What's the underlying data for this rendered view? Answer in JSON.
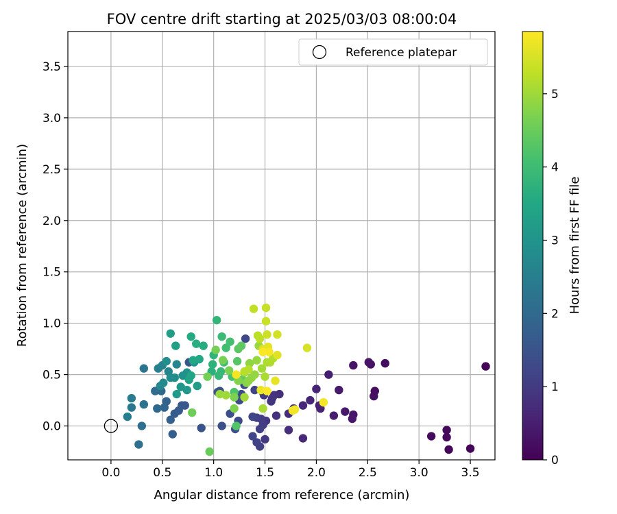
{
  "chart_data": {
    "type": "scatter",
    "title": "FOV centre drift starting at 2025/03/03 08:00:04",
    "xlabel": "Angular distance from reference (arcmin)",
    "ylabel": "Rotation from reference (arcmin)",
    "xlim": [
      -0.42,
      3.74
    ],
    "ylim": [
      -0.33,
      3.84
    ],
    "xticks": [
      "0.0",
      "0.5",
      "1.0",
      "1.5",
      "2.0",
      "2.5",
      "3.0",
      "3.5"
    ],
    "yticks": [
      "0.0",
      "0.5",
      "1.0",
      "1.5",
      "2.0",
      "2.5",
      "3.0",
      "3.5"
    ],
    "grid": true,
    "legend": {
      "placement": "top-right",
      "entries": [
        "Reference platepar"
      ]
    },
    "reference_point": {
      "x": 0.0,
      "y": 0.0
    },
    "colorbar": {
      "label": "Hours from first FF file",
      "range": [
        0,
        5.85
      ],
      "ticks": [
        "0",
        "1",
        "2",
        "3",
        "4",
        "5"
      ],
      "colormap": "viridis"
    },
    "points": [
      [
        3.65,
        0.58,
        0.05
      ],
      [
        3.5,
        -0.22,
        0.08
      ],
      [
        3.29,
        -0.23,
        0.1
      ],
      [
        3.27,
        -0.04,
        0.12
      ],
      [
        3.27,
        -0.11,
        0.14
      ],
      [
        3.12,
        -0.1,
        0.16
      ],
      [
        2.67,
        0.61,
        0.2
      ],
      [
        2.57,
        0.34,
        0.22
      ],
      [
        2.56,
        0.29,
        0.25
      ],
      [
        2.53,
        0.6,
        0.27
      ],
      [
        2.51,
        0.62,
        0.3
      ],
      [
        2.36,
        0.59,
        0.33
      ],
      [
        2.36,
        0.11,
        0.36
      ],
      [
        2.35,
        0.07,
        0.38
      ],
      [
        2.28,
        0.14,
        0.4
      ],
      [
        2.22,
        0.35,
        0.43
      ],
      [
        2.17,
        0.1,
        0.46
      ],
      [
        2.12,
        0.5,
        0.5
      ],
      [
        2.04,
        0.17,
        0.53
      ],
      [
        2.03,
        0.2,
        0.55
      ],
      [
        2.0,
        0.36,
        0.58
      ],
      [
        1.94,
        0.25,
        0.62
      ],
      [
        1.87,
        0.2,
        0.64
      ],
      [
        1.87,
        -0.12,
        0.68
      ],
      [
        1.78,
        0.17,
        0.71
      ],
      [
        1.73,
        0.12,
        0.74
      ],
      [
        1.73,
        -0.04,
        0.76
      ],
      [
        1.64,
        0.31,
        0.8
      ],
      [
        1.61,
        0.1,
        0.82
      ],
      [
        1.59,
        0.3,
        0.85
      ],
      [
        1.57,
        0.27,
        0.87
      ],
      [
        1.56,
        0.24,
        0.9
      ],
      [
        1.51,
        0.05,
        0.92
      ],
      [
        1.5,
        -0.13,
        0.95
      ],
      [
        1.49,
        0.3,
        0.97
      ],
      [
        1.48,
        0.33,
        1.0
      ],
      [
        1.48,
        0.01,
        1.02
      ],
      [
        1.46,
        0.07,
        1.05
      ],
      [
        1.45,
        -0.03,
        1.08
      ],
      [
        1.45,
        -0.2,
        1.1
      ],
      [
        1.42,
        0.08,
        1.12
      ],
      [
        1.42,
        -0.16,
        1.15
      ],
      [
        1.4,
        0.35,
        1.18
      ],
      [
        1.38,
        0.09,
        1.2
      ],
      [
        1.38,
        -0.1,
        1.22
      ],
      [
        1.31,
        0.85,
        1.25
      ],
      [
        1.3,
        0.4,
        1.28
      ],
      [
        1.27,
        0.31,
        1.3
      ],
      [
        1.25,
        0.25,
        1.32
      ],
      [
        1.24,
        0.05,
        1.35
      ],
      [
        1.21,
        -0.03,
        1.38
      ],
      [
        1.16,
        0.12,
        1.4
      ],
      [
        1.08,
        0.0,
        1.42
      ],
      [
        1.06,
        0.34,
        1.45
      ],
      [
        1.04,
        0.33,
        1.48
      ],
      [
        0.88,
        -0.02,
        1.5
      ],
      [
        0.76,
        0.62,
        1.55
      ],
      [
        0.72,
        0.2,
        1.58
      ],
      [
        0.69,
        0.2,
        1.62
      ],
      [
        0.66,
        0.15,
        1.66
      ],
      [
        0.62,
        0.12,
        1.7
      ],
      [
        0.6,
        -0.08,
        1.74
      ],
      [
        0.58,
        0.06,
        1.78
      ],
      [
        0.54,
        0.24,
        1.85
      ],
      [
        0.52,
        0.18,
        1.9
      ],
      [
        0.49,
        0.34,
        1.95
      ],
      [
        0.45,
        0.17,
        2.0
      ],
      [
        0.43,
        0.34,
        2.05
      ],
      [
        0.3,
        0.0,
        2.1
      ],
      [
        0.27,
        -0.18,
        2.15
      ],
      [
        0.32,
        0.21,
        2.2
      ],
      [
        0.32,
        0.56,
        2.28
      ],
      [
        0.2,
        0.18,
        2.35
      ],
      [
        0.2,
        0.27,
        2.4
      ],
      [
        0.16,
        0.09,
        2.45
      ],
      [
        0.46,
        0.56,
        2.52
      ],
      [
        0.5,
        0.59,
        2.58
      ],
      [
        0.56,
        0.53,
        2.62
      ],
      [
        0.64,
        0.6,
        2.68
      ],
      [
        0.48,
        0.39,
        2.72
      ],
      [
        0.51,
        0.42,
        2.76
      ],
      [
        0.58,
        0.47,
        2.8
      ],
      [
        0.62,
        0.47,
        2.85
      ],
      [
        0.54,
        0.63,
        2.88
      ],
      [
        0.7,
        0.49,
        2.92
      ],
      [
        0.74,
        0.52,
        2.98
      ],
      [
        0.81,
        0.62,
        3.02
      ],
      [
        0.68,
        0.38,
        3.06
      ],
      [
        0.74,
        0.35,
        3.1
      ],
      [
        0.64,
        0.31,
        3.15
      ],
      [
        0.84,
        0.39,
        3.2
      ],
      [
        0.58,
        0.9,
        3.25
      ],
      [
        0.63,
        0.78,
        3.3
      ],
      [
        0.76,
        0.45,
        3.35
      ],
      [
        0.78,
        0.49,
        3.4
      ],
      [
        0.8,
        0.64,
        3.45
      ],
      [
        0.86,
        0.65,
        3.5
      ],
      [
        0.78,
        0.87,
        3.55
      ],
      [
        0.9,
        0.78,
        3.6
      ],
      [
        0.83,
        0.8,
        3.65
      ],
      [
        0.98,
        0.53,
        3.7
      ],
      [
        0.99,
        0.6,
        3.75
      ],
      [
        1.0,
        0.69,
        3.78
      ],
      [
        1.03,
        1.03,
        3.82
      ],
      [
        1.05,
        0.49,
        3.86
      ],
      [
        1.07,
        0.53,
        3.9
      ],
      [
        1.08,
        0.87,
        3.95
      ],
      [
        1.1,
        0.62,
        4.0
      ],
      [
        1.12,
        0.76,
        4.05
      ],
      [
        1.16,
        0.82,
        4.1
      ],
      [
        1.18,
        0.48,
        4.15
      ],
      [
        1.2,
        0.33,
        4.2
      ],
      [
        1.22,
        0.0,
        4.25
      ],
      [
        1.23,
        0.63,
        4.3
      ],
      [
        1.24,
        0.75,
        4.35
      ],
      [
        1.27,
        0.78,
        4.4
      ],
      [
        1.28,
        0.45,
        4.45
      ],
      [
        0.96,
        -0.25,
        4.5
      ],
      [
        0.79,
        0.13,
        4.55
      ],
      [
        0.94,
        0.48,
        4.6
      ],
      [
        1.02,
        0.74,
        4.62
      ],
      [
        1.09,
        0.64,
        4.65
      ],
      [
        1.15,
        0.54,
        4.68
      ],
      [
        1.2,
        0.28,
        4.7
      ],
      [
        1.2,
        0.17,
        4.72
      ],
      [
        1.24,
        0.44,
        4.75
      ],
      [
        1.3,
        0.52,
        4.78
      ],
      [
        1.32,
        0.42,
        4.8
      ],
      [
        1.34,
        0.44,
        4.83
      ],
      [
        1.35,
        0.61,
        4.85
      ],
      [
        1.37,
        0.47,
        4.88
      ],
      [
        1.4,
        0.5,
        4.9
      ],
      [
        1.42,
        0.64,
        4.92
      ],
      [
        1.44,
        0.78,
        4.95
      ],
      [
        1.06,
        0.31,
        4.97
      ],
      [
        1.12,
        0.3,
        5.0
      ],
      [
        1.3,
        0.28,
        5.02
      ],
      [
        1.47,
        0.56,
        5.05
      ],
      [
        1.48,
        0.17,
        5.08
      ],
      [
        1.5,
        0.48,
        5.1
      ],
      [
        1.52,
        0.62,
        5.12
      ],
      [
        1.55,
        0.62,
        5.15
      ],
      [
        1.58,
        0.66,
        5.18
      ],
      [
        1.34,
        0.55,
        5.2
      ],
      [
        1.3,
        0.53,
        5.22
      ],
      [
        1.43,
        0.88,
        5.25
      ],
      [
        1.45,
        0.85,
        5.28
      ],
      [
        1.39,
        1.14,
        5.3
      ],
      [
        1.51,
        1.15,
        5.35
      ],
      [
        1.51,
        1.02,
        5.38
      ],
      [
        1.52,
        0.89,
        5.4
      ],
      [
        1.62,
        0.89,
        5.45
      ],
      [
        1.91,
        0.76,
        5.5
      ],
      [
        1.48,
        0.75,
        5.55
      ],
      [
        1.62,
        0.69,
        5.58
      ],
      [
        1.53,
        0.77,
        5.62
      ],
      [
        1.6,
        0.44,
        5.66
      ],
      [
        1.46,
        0.35,
        5.68
      ],
      [
        1.79,
        0.16,
        5.72
      ],
      [
        1.77,
        0.15,
        5.74
      ],
      [
        2.07,
        0.23,
        5.76
      ],
      [
        1.22,
        0.5,
        5.78
      ],
      [
        1.54,
        0.72,
        5.8
      ],
      [
        1.48,
        0.72,
        5.82
      ],
      [
        1.52,
        0.34,
        5.84
      ]
    ]
  }
}
